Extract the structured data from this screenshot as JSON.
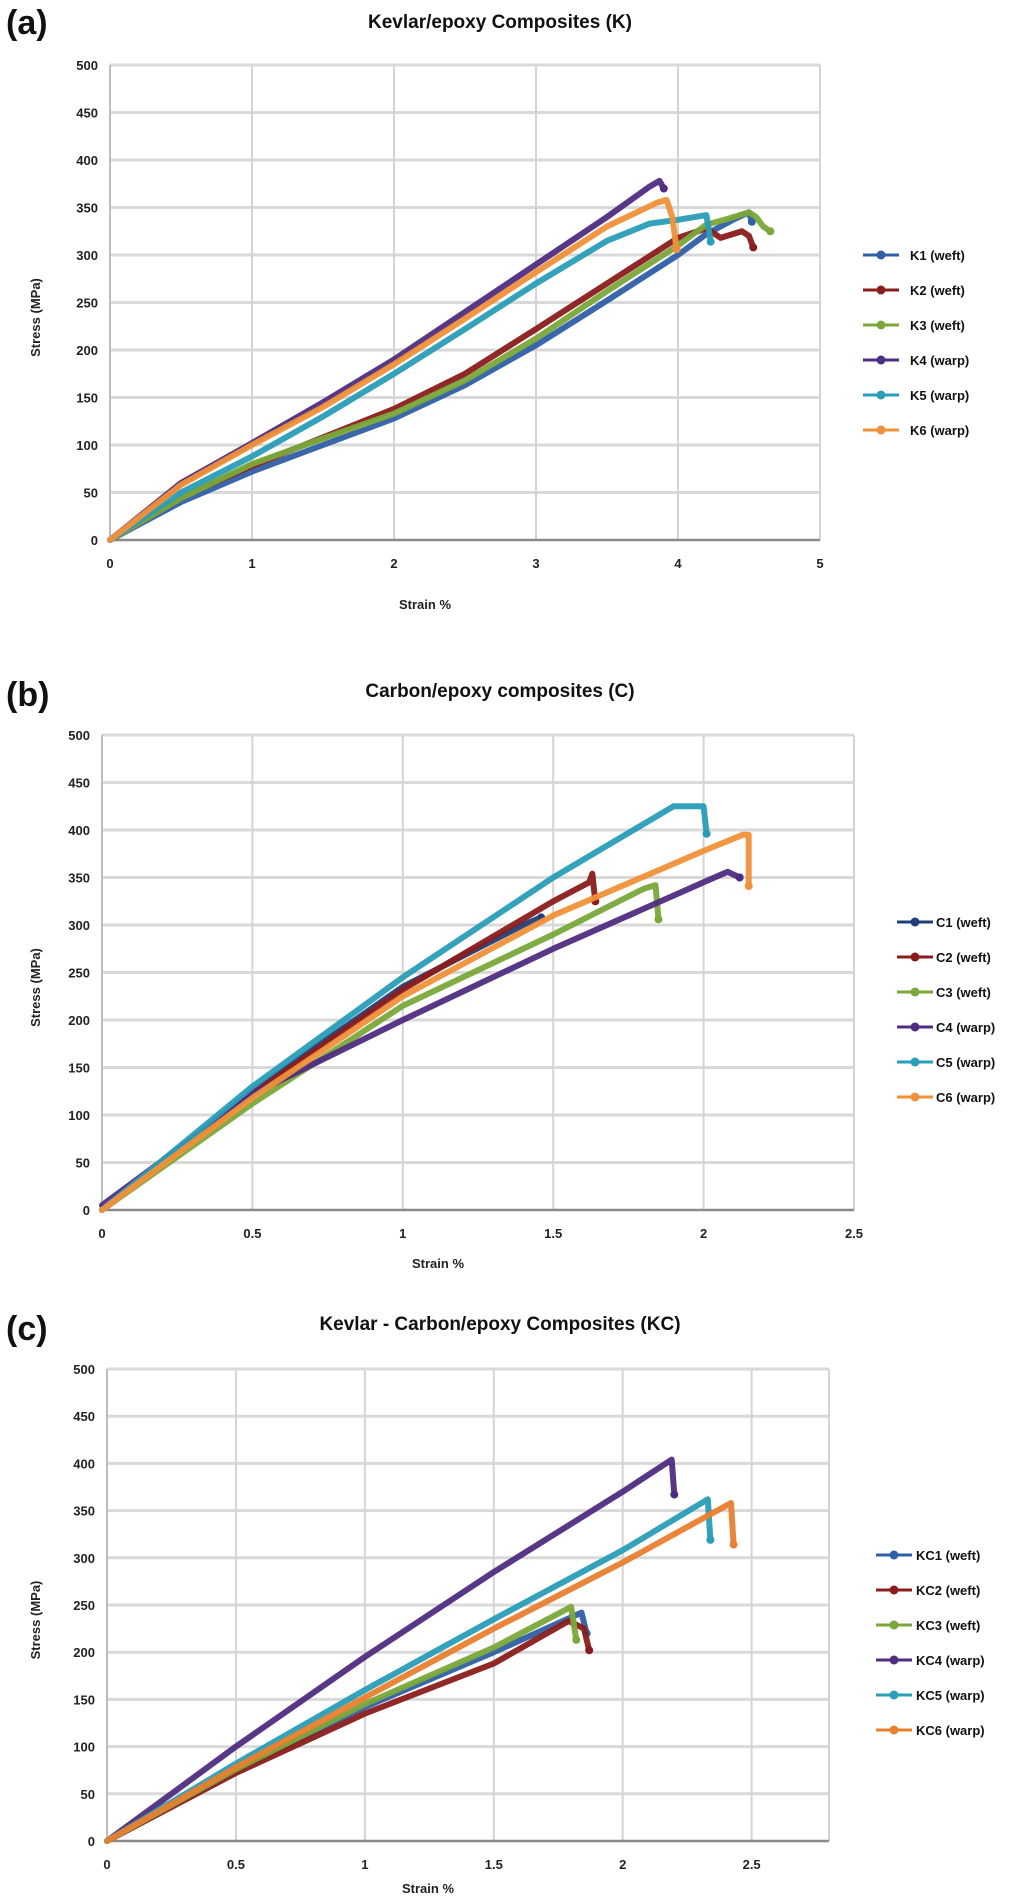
{
  "chart_data": [
    {
      "type": "line",
      "panel_label": "(a)",
      "title": "Kevlar/epoxy Composites (K)",
      "xlabel": "Strain %",
      "ylabel": "Stress (MPa)",
      "xlim": [
        0,
        5
      ],
      "ylim": [
        0,
        500
      ],
      "xticks": [
        "0",
        "1",
        "2",
        "3",
        "4",
        "5"
      ],
      "yticks": [
        "0",
        "50",
        "100",
        "150",
        "200",
        "250",
        "300",
        "350",
        "400",
        "450",
        "500"
      ],
      "grid": true,
      "legend_position": "right",
      "series": [
        {
          "name": "K1 (weft)",
          "color": "#2f5fa6",
          "points": [
            [
              0,
              0
            ],
            [
              0.5,
              40
            ],
            [
              1,
              72
            ],
            [
              1.5,
              100
            ],
            [
              2,
              128
            ],
            [
              2.5,
              163
            ],
            [
              3,
              205
            ],
            [
              3.5,
              252
            ],
            [
              4,
              300
            ],
            [
              4.2,
              322
            ],
            [
              4.4,
              338
            ],
            [
              4.5,
              345
            ],
            [
              4.52,
              335
            ]
          ]
        },
        {
          "name": "K2 (weft)",
          "color": "#8b1c1c",
          "points": [
            [
              0,
              0
            ],
            [
              0.5,
              45
            ],
            [
              1,
              78
            ],
            [
              1.5,
              108
            ],
            [
              2,
              138
            ],
            [
              2.5,
              175
            ],
            [
              3,
              222
            ],
            [
              3.5,
              270
            ],
            [
              4,
              318
            ],
            [
              4.2,
              328
            ],
            [
              4.3,
              318
            ],
            [
              4.45,
              325
            ],
            [
              4.5,
              320
            ],
            [
              4.53,
              308
            ]
          ]
        },
        {
          "name": "K3 (weft)",
          "color": "#7aa83a",
          "points": [
            [
              0,
              0
            ],
            [
              0.5,
              44
            ],
            [
              1,
              80
            ],
            [
              1.5,
              107
            ],
            [
              2,
              133
            ],
            [
              2.5,
              168
            ],
            [
              3,
              212
            ],
            [
              3.5,
              262
            ],
            [
              4,
              310
            ],
            [
              4.2,
              332
            ],
            [
              4.35,
              338
            ],
            [
              4.5,
              345
            ],
            [
              4.55,
              340
            ],
            [
              4.6,
              330
            ],
            [
              4.65,
              325
            ]
          ]
        },
        {
          "name": "K4 (warp)",
          "color": "#4e2c80",
          "points": [
            [
              0,
              0
            ],
            [
              0.5,
              60
            ],
            [
              1,
              102
            ],
            [
              1.5,
              145
            ],
            [
              2,
              190
            ],
            [
              2.5,
              240
            ],
            [
              3,
              290
            ],
            [
              3.5,
              340
            ],
            [
              3.8,
              372
            ],
            [
              3.87,
              378
            ],
            [
              3.9,
              370
            ]
          ]
        },
        {
          "name": "K5 (warp)",
          "color": "#2a9db8",
          "points": [
            [
              0,
              0
            ],
            [
              0.5,
              50
            ],
            [
              1,
              88
            ],
            [
              1.5,
              130
            ],
            [
              2,
              175
            ],
            [
              2.5,
              222
            ],
            [
              3,
              270
            ],
            [
              3.5,
              315
            ],
            [
              3.8,
              333
            ],
            [
              4.0,
              337
            ],
            [
              4.2,
              342
            ],
            [
              4.23,
              314
            ]
          ]
        },
        {
          "name": "K6 (warp)",
          "color": "#f0913a",
          "points": [
            [
              0,
              0
            ],
            [
              0.5,
              58
            ],
            [
              1,
              100
            ],
            [
              1.5,
              140
            ],
            [
              2,
              185
            ],
            [
              2.5,
              233
            ],
            [
              3,
              282
            ],
            [
              3.5,
              330
            ],
            [
              3.85,
              355
            ],
            [
              3.92,
              358
            ],
            [
              3.96,
              340
            ],
            [
              3.99,
              306
            ]
          ]
        }
      ]
    },
    {
      "type": "line",
      "panel_label": "(b)",
      "title": "Carbon/epoxy composites (C)",
      "xlabel": "Strain %",
      "ylabel": "Stress (MPa)",
      "xlim": [
        0,
        2.5
      ],
      "ylim": [
        0,
        500
      ],
      "xticks": [
        "0",
        "0.5",
        "1",
        "1.5",
        "2",
        "2.5"
      ],
      "yticks": [
        "0",
        "50",
        "100",
        "150",
        "200",
        "250",
        "300",
        "350",
        "400",
        "450",
        "500"
      ],
      "grid": true,
      "legend_position": "right",
      "series": [
        {
          "name": "C1 (weft)",
          "color": "#1f3f7a",
          "points": [
            [
              0,
              0
            ],
            [
              0.5,
              125
            ],
            [
              1,
              235
            ],
            [
              1.4,
              300
            ],
            [
              1.46,
              308
            ]
          ]
        },
        {
          "name": "C2 (weft)",
          "color": "#8b1c1c",
          "points": [
            [
              0,
              0
            ],
            [
              0.5,
              122
            ],
            [
              1,
              232
            ],
            [
              1.5,
              325
            ],
            [
              1.62,
              345
            ],
            [
              1.63,
              354
            ],
            [
              1.64,
              325
            ]
          ]
        },
        {
          "name": "C3 (weft)",
          "color": "#7aa83a",
          "points": [
            [
              0,
              0
            ],
            [
              0.5,
              112
            ],
            [
              1,
              215
            ],
            [
              1.5,
              290
            ],
            [
              1.8,
              338
            ],
            [
              1.84,
              342
            ],
            [
              1.85,
              306
            ]
          ]
        },
        {
          "name": "C4 (warp)",
          "color": "#4e2c80",
          "points": [
            [
              0,
              5
            ],
            [
              0.5,
              122
            ],
            [
              1,
              200
            ],
            [
              1.5,
              275
            ],
            [
              2,
              345
            ],
            [
              2.08,
              356
            ],
            [
              2.12,
              350
            ]
          ]
        },
        {
          "name": "C5 (warp)",
          "color": "#2a9db8",
          "points": [
            [
              0,
              0
            ],
            [
              0.5,
              130
            ],
            [
              1,
              245
            ],
            [
              1.5,
              350
            ],
            [
              1.9,
              425
            ],
            [
              2.0,
              425
            ],
            [
              2.01,
              396
            ]
          ]
        },
        {
          "name": "C6 (warp)",
          "color": "#f0913a",
          "points": [
            [
              0,
              0
            ],
            [
              0.5,
              118
            ],
            [
              1,
              225
            ],
            [
              1.5,
              310
            ],
            [
              2,
              378
            ],
            [
              2.13,
              395
            ],
            [
              2.15,
              395
            ],
            [
              2.15,
              341
            ]
          ]
        }
      ]
    },
    {
      "type": "line",
      "panel_label": "(c)",
      "title": "Kevlar - Carbon/epoxy  Composites (KC)",
      "xlabel": "Strain %",
      "ylabel": "Stress (MPa)",
      "xlim": [
        0,
        2.8
      ],
      "ylim": [
        0,
        500
      ],
      "xticks": [
        "0",
        "0.5",
        "1",
        "1.5",
        "2",
        "2.5"
      ],
      "yticks": [
        "0",
        "50",
        "100",
        "150",
        "200",
        "250",
        "300",
        "350",
        "400",
        "450",
        "500"
      ],
      "grid": true,
      "legend_position": "right",
      "series": [
        {
          "name": "KC1 (weft)",
          "color": "#2f5fa6",
          "points": [
            [
              0,
              0
            ],
            [
              0.5,
              75
            ],
            [
              1,
              142
            ],
            [
              1.5,
              200
            ],
            [
              1.84,
              242
            ],
            [
              1.86,
              220
            ]
          ]
        },
        {
          "name": "KC2 (weft)",
          "color": "#8b1c1c",
          "points": [
            [
              0,
              0
            ],
            [
              0.5,
              72
            ],
            [
              1,
              135
            ],
            [
              1.5,
              188
            ],
            [
              1.79,
              233
            ],
            [
              1.85,
              225
            ],
            [
              1.87,
              202
            ]
          ]
        },
        {
          "name": "KC3 (weft)",
          "color": "#7aa83a",
          "points": [
            [
              0,
              0
            ],
            [
              0.5,
              76
            ],
            [
              1,
              145
            ],
            [
              1.5,
              205
            ],
            [
              1.8,
              248
            ],
            [
              1.82,
              213
            ]
          ]
        },
        {
          "name": "KC4 (warp)",
          "color": "#4e2c80",
          "points": [
            [
              0,
              0
            ],
            [
              0.5,
              100
            ],
            [
              1,
              195
            ],
            [
              1.5,
              285
            ],
            [
              2,
              370
            ],
            [
              2.19,
              404
            ],
            [
              2.2,
              367
            ]
          ]
        },
        {
          "name": "KC5 (warp)",
          "color": "#2a9db8",
          "points": [
            [
              0,
              0
            ],
            [
              0.5,
              82
            ],
            [
              1,
              160
            ],
            [
              1.5,
              235
            ],
            [
              2,
              308
            ],
            [
              2.33,
              362
            ],
            [
              2.34,
              319
            ]
          ]
        },
        {
          "name": "KC6 (warp)",
          "color": "#e8802e",
          "points": [
            [
              0,
              0
            ],
            [
              0.5,
              78
            ],
            [
              1,
              152
            ],
            [
              1.5,
              225
            ],
            [
              2,
              295
            ],
            [
              2.42,
              358
            ],
            [
              2.43,
              314
            ]
          ]
        }
      ]
    }
  ]
}
